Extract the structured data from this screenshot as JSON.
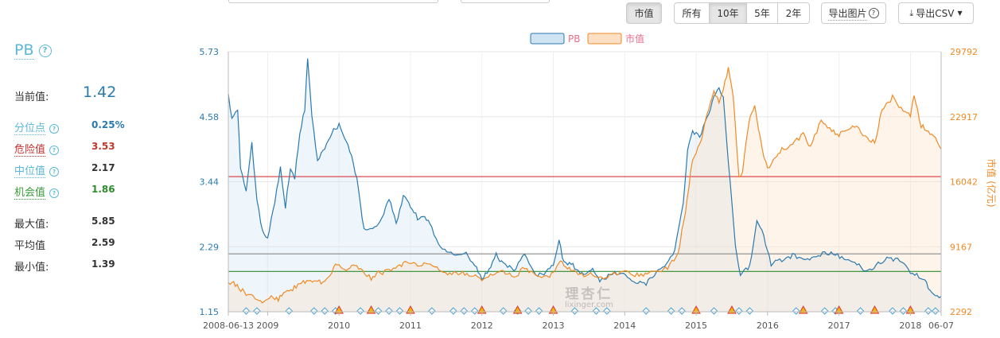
{
  "toolbar": {
    "market_cap_btn": "市值",
    "range": [
      "所有",
      "10年",
      "5年",
      "2年"
    ],
    "active_range": 1,
    "export_image": "导出图片",
    "export_csv": "导出CSV"
  },
  "panel": {
    "title": "PB",
    "current_label": "当前值:",
    "current_value": "1.42",
    "stats": [
      {
        "label": "分位点",
        "value": "0.25%",
        "style": "link",
        "color": "#2a7ab0"
      },
      {
        "label": "危险值",
        "value": "3.53",
        "style": "link-red",
        "color": "#c0392b"
      },
      {
        "label": "中位值",
        "value": "2.17",
        "style": "link",
        "color": "#333333"
      },
      {
        "label": "机会值",
        "value": "1.86",
        "style": "link-green",
        "color": "#2e8b2e"
      },
      {
        "label": "最大值:",
        "value": "5.85",
        "style": "plain",
        "color": "#333333"
      },
      {
        "label": "平均值",
        "value": "2.59",
        "style": "plain",
        "color": "#333333"
      },
      {
        "label": "最小值:",
        "value": "1.39",
        "style": "plain",
        "color": "#333333"
      }
    ]
  },
  "watermark": {
    "cn": "理杏仁",
    "en": "lixinger.com"
  },
  "chart_data": {
    "type": "line",
    "legend_placement": "top-center",
    "ylabel_right": "市值 (亿元)",
    "y_left": {
      "ticks": [
        "5.73",
        "4.58",
        "3.44",
        "2.29",
        "1.15"
      ],
      "range": [
        1.15,
        5.73
      ]
    },
    "y_right": {
      "ticks": [
        "29792",
        "22917",
        "16042",
        "9167",
        "2292"
      ],
      "range": [
        2292,
        29792
      ]
    },
    "x_ticks": [
      "2008-06-13",
      "2009",
      "2010",
      "2011",
      "2012",
      "2013",
      "2014",
      "2015",
      "2016",
      "2017",
      "2018",
      "06-07"
    ],
    "x_tick_pos": [
      2008.45,
      2009.0,
      2010.0,
      2011.0,
      2012.0,
      2013.0,
      2014.0,
      2015.0,
      2016.0,
      2017.0,
      2018.0,
      2018.43
    ],
    "x_range": [
      2008.45,
      2018.43
    ],
    "reference_lines": [
      {
        "name": "危险值",
        "value": 3.53,
        "color": "#d9363e"
      },
      {
        "name": "中位值",
        "value": 2.17,
        "color": "#888888"
      },
      {
        "name": "机会值",
        "value": 1.86,
        "color": "#2e8b2e"
      }
    ],
    "series": [
      {
        "name": "PB",
        "axis": "left",
        "color": "#2a7ab0",
        "fill": "#cfe3f3",
        "points": [
          [
            2008.45,
            4.95
          ],
          [
            2008.5,
            4.6
          ],
          [
            2008.58,
            4.7
          ],
          [
            2008.62,
            3.7
          ],
          [
            2008.7,
            3.3
          ],
          [
            2008.78,
            4.1
          ],
          [
            2008.85,
            3.1
          ],
          [
            2008.93,
            2.55
          ],
          [
            2009.0,
            2.45
          ],
          [
            2009.1,
            3.1
          ],
          [
            2009.18,
            3.7
          ],
          [
            2009.25,
            3.0
          ],
          [
            2009.32,
            3.7
          ],
          [
            2009.38,
            3.5
          ],
          [
            2009.45,
            4.3
          ],
          [
            2009.52,
            4.7
          ],
          [
            2009.56,
            5.65
          ],
          [
            2009.62,
            4.6
          ],
          [
            2009.7,
            3.8
          ],
          [
            2009.8,
            4.05
          ],
          [
            2009.9,
            4.3
          ],
          [
            2010.0,
            4.45
          ],
          [
            2010.08,
            4.2
          ],
          [
            2010.15,
            4.0
          ],
          [
            2010.25,
            3.5
          ],
          [
            2010.35,
            2.6
          ],
          [
            2010.5,
            2.65
          ],
          [
            2010.6,
            2.8
          ],
          [
            2010.7,
            3.15
          ],
          [
            2010.8,
            2.7
          ],
          [
            2010.9,
            3.2
          ],
          [
            2011.0,
            3.0
          ],
          [
            2011.1,
            2.8
          ],
          [
            2011.2,
            2.85
          ],
          [
            2011.3,
            2.6
          ],
          [
            2011.45,
            2.25
          ],
          [
            2011.6,
            2.15
          ],
          [
            2011.75,
            2.2
          ],
          [
            2011.9,
            2.0
          ],
          [
            2012.0,
            1.75
          ],
          [
            2012.1,
            1.9
          ],
          [
            2012.2,
            2.15
          ],
          [
            2012.3,
            2.0
          ],
          [
            2012.45,
            1.9
          ],
          [
            2012.6,
            2.15
          ],
          [
            2012.75,
            1.8
          ],
          [
            2012.9,
            1.85
          ],
          [
            2013.0,
            2.0
          ],
          [
            2013.08,
            2.4
          ],
          [
            2013.15,
            2.0
          ],
          [
            2013.25,
            2.0
          ],
          [
            2013.35,
            1.85
          ],
          [
            2013.45,
            1.8
          ],
          [
            2013.55,
            1.9
          ],
          [
            2013.65,
            1.7
          ],
          [
            2013.8,
            1.8
          ],
          [
            2013.95,
            1.85
          ],
          [
            2014.1,
            1.7
          ],
          [
            2014.3,
            1.65
          ],
          [
            2014.5,
            1.9
          ],
          [
            2014.7,
            2.2
          ],
          [
            2014.82,
            3.1
          ],
          [
            2014.88,
            4.0
          ],
          [
            2014.95,
            4.35
          ],
          [
            2015.05,
            4.2
          ],
          [
            2015.15,
            4.55
          ],
          [
            2015.25,
            4.95
          ],
          [
            2015.32,
            5.1
          ],
          [
            2015.38,
            4.9
          ],
          [
            2015.45,
            3.8
          ],
          [
            2015.55,
            2.3
          ],
          [
            2015.62,
            1.8
          ],
          [
            2015.75,
            1.95
          ],
          [
            2015.85,
            2.75
          ],
          [
            2015.92,
            2.6
          ],
          [
            2016.05,
            2.0
          ],
          [
            2016.2,
            2.05
          ],
          [
            2016.35,
            2.15
          ],
          [
            2016.5,
            2.05
          ],
          [
            2016.65,
            2.1
          ],
          [
            2016.8,
            2.2
          ],
          [
            2016.95,
            2.15
          ],
          [
            2017.1,
            2.1
          ],
          [
            2017.25,
            2.0
          ],
          [
            2017.4,
            1.85
          ],
          [
            2017.55,
            2.0
          ],
          [
            2017.7,
            2.1
          ],
          [
            2017.85,
            2.05
          ],
          [
            2018.0,
            1.85
          ],
          [
            2018.15,
            1.75
          ],
          [
            2018.25,
            1.6
          ],
          [
            2018.35,
            1.45
          ],
          [
            2018.43,
            1.42
          ]
        ]
      },
      {
        "name": "市值",
        "axis": "right",
        "color": "#f08a24",
        "fill": "#fde0c4",
        "points": [
          [
            2008.45,
            5500
          ],
          [
            2008.55,
            5200
          ],
          [
            2008.65,
            4500
          ],
          [
            2008.75,
            4000
          ],
          [
            2008.85,
            3500
          ],
          [
            2008.95,
            3200
          ],
          [
            2009.05,
            4000
          ],
          [
            2009.15,
            3600
          ],
          [
            2009.25,
            4500
          ],
          [
            2009.35,
            4700
          ],
          [
            2009.45,
            5200
          ],
          [
            2009.55,
            5500
          ],
          [
            2009.65,
            5700
          ],
          [
            2009.75,
            5400
          ],
          [
            2009.85,
            6100
          ],
          [
            2009.95,
            7200
          ],
          [
            2010.0,
            7300
          ],
          [
            2010.1,
            6800
          ],
          [
            2010.2,
            7100
          ],
          [
            2010.3,
            6900
          ],
          [
            2010.45,
            5800
          ],
          [
            2010.55,
            6400
          ],
          [
            2010.7,
            6600
          ],
          [
            2010.85,
            7200
          ],
          [
            2010.95,
            7500
          ],
          [
            2011.1,
            7200
          ],
          [
            2011.25,
            7300
          ],
          [
            2011.4,
            6900
          ],
          [
            2011.55,
            6300
          ],
          [
            2011.7,
            6500
          ],
          [
            2011.85,
            6200
          ],
          [
            2012.0,
            5700
          ],
          [
            2012.15,
            6200
          ],
          [
            2012.3,
            6600
          ],
          [
            2012.45,
            6000
          ],
          [
            2012.6,
            6900
          ],
          [
            2012.75,
            6200
          ],
          [
            2012.9,
            6000
          ],
          [
            2013.0,
            6300
          ],
          [
            2013.1,
            7500
          ],
          [
            2013.2,
            7000
          ],
          [
            2013.3,
            6500
          ],
          [
            2013.4,
            6200
          ],
          [
            2013.55,
            6300
          ],
          [
            2013.7,
            5900
          ],
          [
            2013.85,
            6300
          ],
          [
            2014.0,
            6400
          ],
          [
            2014.2,
            6200
          ],
          [
            2014.4,
            6400
          ],
          [
            2014.6,
            7000
          ],
          [
            2014.75,
            8500
          ],
          [
            2014.85,
            13000
          ],
          [
            2014.95,
            18500
          ],
          [
            2015.05,
            20000
          ],
          [
            2015.15,
            23000
          ],
          [
            2015.25,
            25500
          ],
          [
            2015.32,
            24500
          ],
          [
            2015.38,
            26000
          ],
          [
            2015.45,
            28000
          ],
          [
            2015.52,
            25000
          ],
          [
            2015.6,
            16500
          ],
          [
            2015.65,
            17200
          ],
          [
            2015.75,
            23000
          ],
          [
            2015.82,
            24000
          ],
          [
            2015.95,
            18500
          ],
          [
            2016.0,
            17500
          ],
          [
            2016.1,
            18500
          ],
          [
            2016.2,
            19500
          ],
          [
            2016.35,
            20000
          ],
          [
            2016.5,
            21000
          ],
          [
            2016.6,
            19800
          ],
          [
            2016.75,
            22500
          ],
          [
            2016.9,
            21500
          ],
          [
            2017.0,
            21000
          ],
          [
            2017.1,
            21500
          ],
          [
            2017.25,
            22000
          ],
          [
            2017.4,
            20500
          ],
          [
            2017.5,
            20200
          ],
          [
            2017.6,
            23500
          ],
          [
            2017.75,
            25000
          ],
          [
            2017.9,
            23500
          ],
          [
            2018.0,
            23000
          ],
          [
            2018.05,
            25000
          ],
          [
            2018.15,
            22000
          ],
          [
            2018.25,
            21500
          ],
          [
            2018.35,
            20500
          ],
          [
            2018.43,
            19500
          ]
        ]
      }
    ],
    "markers": {
      "diamonds": [
        2008.7,
        2008.85,
        2009.3,
        2009.65,
        2009.8,
        2009.95,
        2010.3,
        2010.55,
        2010.7,
        2010.85,
        2011.3,
        2011.6,
        2011.75,
        2011.9,
        2012.3,
        2012.5,
        2012.65,
        2012.8,
        2013.3,
        2013.6,
        2013.75,
        2014.3,
        2014.65,
        2014.8,
        2015.25,
        2015.6,
        2015.75,
        2016.4,
        2016.8,
        2016.95,
        2017.3,
        2017.75,
        2017.9,
        2018.25,
        2018.35
      ],
      "triangles": [
        2010.0,
        2010.45,
        2011.0,
        2012.0,
        2012.5,
        2013.0,
        2015.0,
        2015.5,
        2016.5,
        2017.0,
        2017.5,
        2018.0
      ]
    }
  }
}
